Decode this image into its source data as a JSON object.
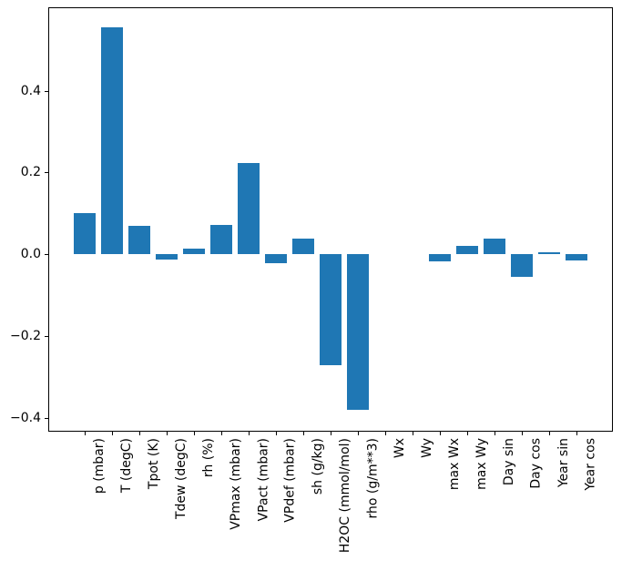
{
  "figure": {
    "background": "#ffffff",
    "axis_color": "#000000",
    "text_color": "#000000"
  },
  "chart_data": {
    "type": "bar",
    "title": "",
    "xlabel": "",
    "ylabel": "",
    "categories": [
      "p (mbar)",
      "T (degC)",
      "Tpot (K)",
      "Tdew (degC)",
      "rh (%)",
      "VPmax (mbar)",
      "VPact (mbar)",
      "VPdef (mbar)",
      "sh (g/kg)",
      "H2OC (mmol/mol)",
      "rho (g/m**3)",
      "Wx",
      "Wy",
      "max Wx",
      "max Wy",
      "Day sin",
      "Day cos",
      "Year sin",
      "Year cos"
    ],
    "values": [
      0.101,
      0.555,
      0.069,
      -0.012,
      0.013,
      0.071,
      0.223,
      -0.022,
      0.038,
      -0.272,
      -0.38,
      0.0,
      0.0,
      -0.018,
      0.021,
      0.038,
      -0.056,
      0.004,
      -0.016
    ],
    "bar_color": "#1f77b4",
    "bar_width": 0.8,
    "xlim": [
      -1.34,
      19.34
    ],
    "ylim": [
      -0.434,
      0.604
    ],
    "yticks": [
      -0.4,
      -0.2,
      0.0,
      0.2,
      0.4
    ],
    "ytick_labels": [
      "−0.4",
      "−0.2",
      "0.0",
      "0.2",
      "0.4"
    ],
    "xtick_rotation_deg": 90,
    "grid": false,
    "legend": false
  }
}
